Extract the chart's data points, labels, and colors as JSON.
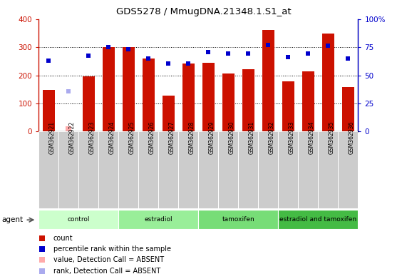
{
  "title": "GDS5278 / MmugDNA.21348.1.S1_at",
  "samples": [
    "GSM362921",
    "GSM362922",
    "GSM362923",
    "GSM362924",
    "GSM362925",
    "GSM362926",
    "GSM362927",
    "GSM362928",
    "GSM362929",
    "GSM362930",
    "GSM362931",
    "GSM362932",
    "GSM362933",
    "GSM362934",
    "GSM362935",
    "GSM362936"
  ],
  "count_values": [
    148,
    null,
    196,
    300,
    300,
    260,
    128,
    242,
    245,
    207,
    222,
    362,
    179,
    215,
    350,
    158
  ],
  "count_absent": [
    null,
    18,
    null,
    null,
    null,
    null,
    null,
    null,
    null,
    null,
    null,
    null,
    null,
    null,
    null,
    null
  ],
  "rank_values": [
    253,
    null,
    270,
    300,
    292,
    260,
    242,
    242,
    283,
    278,
    278,
    307,
    265,
    278,
    305,
    260
  ],
  "rank_absent": [
    null,
    142,
    null,
    null,
    null,
    null,
    null,
    null,
    null,
    null,
    null,
    null,
    null,
    null,
    null,
    null
  ],
  "groups": [
    {
      "label": "control",
      "start": 0,
      "end": 4,
      "color": "#ccffcc"
    },
    {
      "label": "estradiol",
      "start": 4,
      "end": 8,
      "color": "#99ee99"
    },
    {
      "label": "tamoxifen",
      "start": 8,
      "end": 12,
      "color": "#77dd77"
    },
    {
      "label": "estradiol and tamoxifen",
      "start": 12,
      "end": 16,
      "color": "#44bb44"
    }
  ],
  "bar_color": "#cc1100",
  "bar_absent_color": "#ffaaaa",
  "rank_color": "#0000cc",
  "rank_absent_color": "#aaaaee",
  "ylim_left": [
    0,
    400
  ],
  "ylim_right": [
    0,
    100
  ],
  "yticks_left": [
    0,
    100,
    200,
    300,
    400
  ],
  "yticks_right": [
    0,
    25,
    50,
    75,
    100
  ],
  "agent_label": "agent",
  "legend_items": [
    {
      "label": "count",
      "color": "#cc1100"
    },
    {
      "label": "percentile rank within the sample",
      "color": "#0000cc"
    },
    {
      "label": "value, Detection Call = ABSENT",
      "color": "#ffaaaa"
    },
    {
      "label": "rank, Detection Call = ABSENT",
      "color": "#aaaaee"
    }
  ],
  "bg_color": "#ffffff",
  "sample_box_color": "#cccccc"
}
